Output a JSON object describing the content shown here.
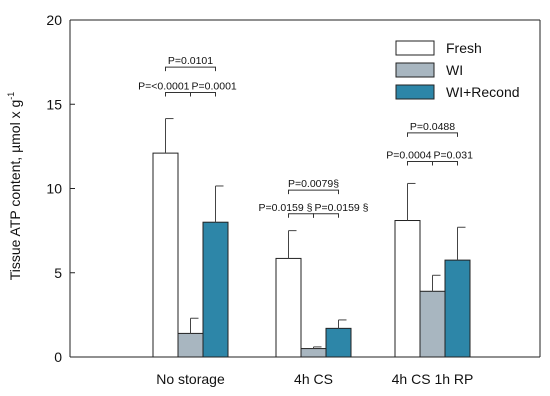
{
  "chart_data": {
    "type": "bar",
    "ylabel_main": "Tissue ATP content, ",
    "ylabel_unit": "µmol x g",
    "ylabel_sup": "-1",
    "ylim": [
      0,
      20
    ],
    "yticks": [
      0,
      5,
      10,
      15,
      20
    ],
    "categories": [
      "No storage",
      "4h CS",
      "4h CS 1h RP"
    ],
    "series": [
      {
        "name": "Fresh",
        "color": "#ffffff",
        "values": [
          12.1,
          5.85,
          8.1
        ],
        "errors": [
          2.05,
          1.65,
          2.2
        ]
      },
      {
        "name": "WI",
        "color": "#a8b6c0",
        "values": [
          1.4,
          0.5,
          3.9
        ],
        "errors": [
          0.9,
          0.1,
          0.95
        ]
      },
      {
        "name": "WI+Recond",
        "color": "#2d86a8",
        "values": [
          8.0,
          1.7,
          5.75
        ],
        "errors": [
          2.15,
          0.5,
          1.95
        ]
      }
    ],
    "legend_position": "top-right",
    "grid": false,
    "annotations": [
      {
        "text": "P=0.0101",
        "group": 0,
        "from": 0,
        "to": 2,
        "y": 17.2,
        "level": "top"
      },
      {
        "text": "P=<0.0001",
        "group": 0,
        "from": 0,
        "to": 1,
        "y": 15.7,
        "level": "low",
        "align": "end"
      },
      {
        "text": "P=0.0001",
        "group": 0,
        "from": 1,
        "to": 2,
        "y": 15.7,
        "level": "low",
        "align": "start"
      },
      {
        "text": "P=0.0079§",
        "group": 1,
        "from": 0,
        "to": 2,
        "y": 9.9,
        "level": "top"
      },
      {
        "text": "P=0.0159 §",
        "group": 1,
        "from": 0,
        "to": 1,
        "y": 8.5,
        "level": "low",
        "align": "end"
      },
      {
        "text": "P=0.0159 §",
        "group": 1,
        "from": 1,
        "to": 2,
        "y": 8.5,
        "level": "low",
        "align": "start"
      },
      {
        "text": "P=0.0488",
        "group": 2,
        "from": 0,
        "to": 2,
        "y": 13.3,
        "level": "top"
      },
      {
        "text": "P=0.0004",
        "group": 2,
        "from": 0,
        "to": 1,
        "y": 11.6,
        "level": "low",
        "align": "end"
      },
      {
        "text": "P=0.031",
        "group": 2,
        "from": 1,
        "to": 2,
        "y": 11.6,
        "level": "low",
        "align": "start"
      }
    ]
  }
}
